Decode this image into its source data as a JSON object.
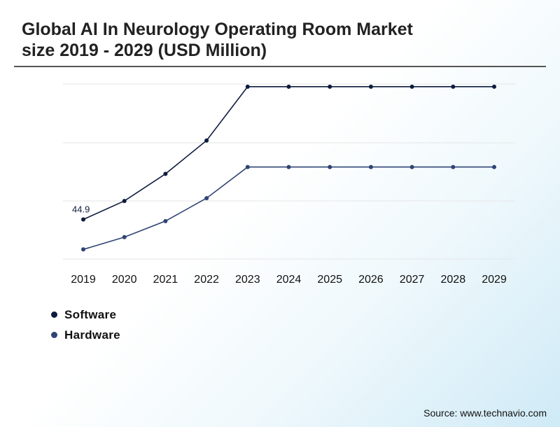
{
  "title_line1": "Global AI In Neurology Operating Room Market",
  "title_line2": "size 2019 - 2029 (USD Million)",
  "source": "Source: www.technavio.com",
  "colors": {
    "software": "#0d1b3e",
    "hardware": "#2f4474",
    "grid": "#e6e6e6",
    "divider": "#555555"
  },
  "chart_data": {
    "type": "line",
    "title": "Global AI In Neurology Operating Room Market size 2019 - 2029 (USD Million)",
    "xlabel": "",
    "ylabel": "",
    "x": [
      "2019",
      "2020",
      "2021",
      "2022",
      "2023",
      "2024",
      "2025",
      "2026",
      "2027",
      "2028",
      "2029"
    ],
    "grid": true,
    "legend": "bottom-left",
    "ylim": [
      20,
      120
    ],
    "series": [
      {
        "name": "Software",
        "values": [
          44.9,
          54.1,
          67.6,
          84.2,
          111.0,
          111.0,
          111.0,
          111.0,
          111.0,
          111.0,
          111.0
        ],
        "labels": [
          "44.9",
          "",
          "",
          "",
          "",
          "",
          "",
          "",
          "",
          "",
          ""
        ]
      },
      {
        "name": "Hardware",
        "values": [
          30.0,
          36.1,
          44.1,
          55.5,
          71.0,
          71.0,
          71.0,
          71.0,
          71.0,
          71.0,
          71.0
        ]
      }
    ]
  }
}
